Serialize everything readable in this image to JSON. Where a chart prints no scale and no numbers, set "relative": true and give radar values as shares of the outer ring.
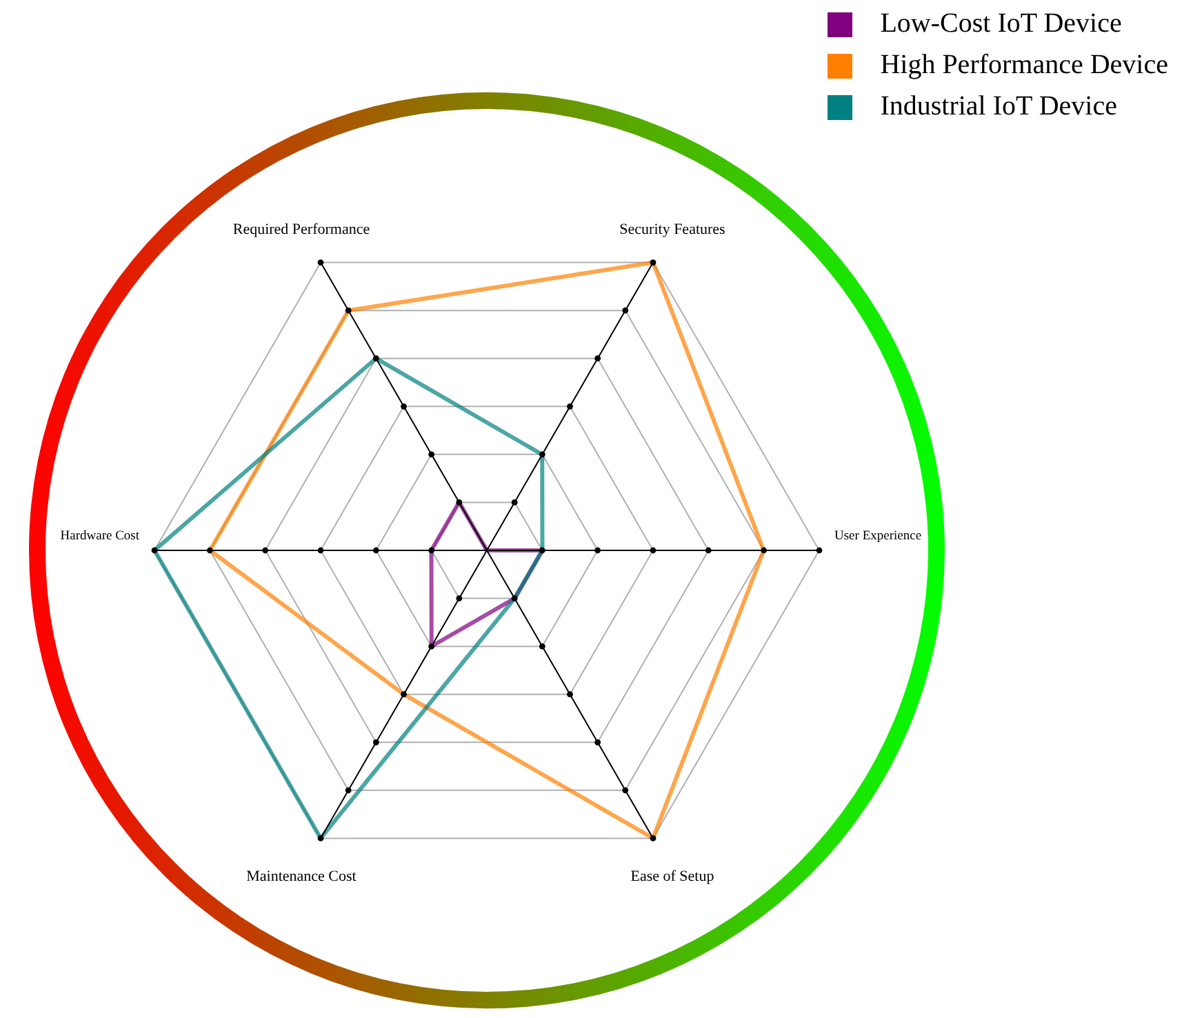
{
  "chart_data": {
    "type": "radar",
    "relative": true,
    "categories": [
      "Security Features",
      "User Experience",
      "Ease of Setup",
      "Maintenance Cost",
      "Hardware Cost",
      "Required Performance"
    ],
    "series": [
      {
        "name": "Low-Cost IoT Device",
        "color": "#800080",
        "values": [
          0,
          0.167,
          0.167,
          0.333,
          0.167,
          0.167
        ]
      },
      {
        "name": "High Performance Device",
        "color": "#ff8000",
        "values": [
          1,
          0.833,
          1,
          0.5,
          0.833,
          0.833
        ]
      },
      {
        "name": "Industrial IoT Device",
        "color": "#008080",
        "values": [
          0.333,
          0.167,
          0.167,
          1,
          1,
          0.667
        ]
      }
    ],
    "grid": true,
    "legend": "top right",
    "marker": "none",
    "line_style": "solid"
  }
}
